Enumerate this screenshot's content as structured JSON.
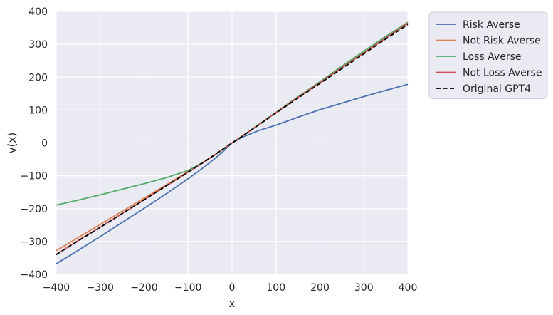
{
  "chart_data": {
    "type": "line",
    "title": "",
    "xlabel": "x",
    "ylabel": "v(x)",
    "xlim": [
      -400,
      400
    ],
    "ylim": [
      -400,
      400
    ],
    "xticks": [
      -400,
      -300,
      -200,
      -100,
      0,
      100,
      200,
      300,
      400
    ],
    "yticks": [
      -400,
      -300,
      -200,
      -100,
      0,
      100,
      200,
      300,
      400
    ],
    "grid": true,
    "legend_position": "outside-top-right",
    "x": [
      -400,
      -350,
      -300,
      -250,
      -200,
      -150,
      -100,
      -60,
      -25,
      0,
      25,
      60,
      100,
      150,
      200,
      250,
      300,
      350,
      400
    ],
    "series": [
      {
        "name": "Risk Averse",
        "color": "#4c72b0",
        "style": "solid",
        "values": [
          -368,
          -327,
          -285,
          -242,
          -199,
          -155,
          -109,
          -70,
          -32,
          0,
          18,
          37,
          54,
          78,
          101,
          121,
          141,
          160,
          178
        ]
      },
      {
        "name": "Not Risk Averse",
        "color": "#dd8452",
        "style": "solid",
        "values": [
          -328,
          -288,
          -248,
          -208,
          -168,
          -128,
          -87,
          -54,
          -23,
          0,
          22,
          55,
          93,
          140,
          186,
          233,
          279,
          324,
          367
        ]
      },
      {
        "name": "Loss Averse",
        "color": "#55a868",
        "style": "solid",
        "values": [
          -189,
          -174,
          -158,
          -141,
          -124,
          -106,
          -84,
          -55,
          -24,
          0,
          22,
          55,
          93,
          140,
          186,
          233,
          279,
          324,
          367
        ]
      },
      {
        "name": "Not Loss Averse",
        "color": "#c44e52",
        "style": "solid",
        "values": [
          -339,
          -297,
          -256,
          -215,
          -173,
          -131,
          -89,
          -55,
          -23,
          0,
          22,
          54,
          92,
          138,
          183,
          229,
          274,
          319,
          364
        ]
      },
      {
        "name": "Original GPT4",
        "color": "#000000",
        "style": "dashed",
        "values": [
          -340,
          -298,
          -257,
          -215,
          -173,
          -131,
          -89,
          -55,
          -23,
          0,
          22,
          54,
          91,
          136,
          181,
          226,
          271,
          316,
          360
        ]
      }
    ]
  }
}
